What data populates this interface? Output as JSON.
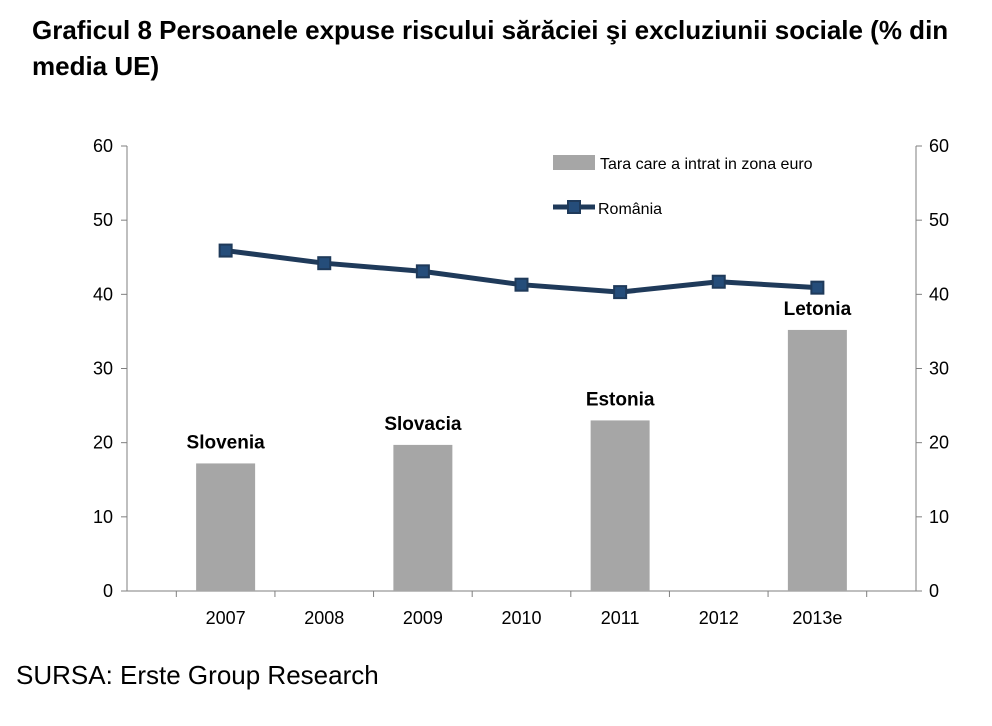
{
  "title": "Graficul 8 Persoanele expuse riscului sărăciei şi excluziunii sociale (% din media UE)",
  "source": "SURSA: Erste Group Research",
  "chart_data": {
    "type": "bar",
    "categories": [
      "2007",
      "2008",
      "2009",
      "2010",
      "2011",
      "2012",
      "2013e"
    ],
    "series": [
      {
        "name": "Tara care a intrat in zona euro",
        "type": "bar",
        "color": "#a6a6a6",
        "values": [
          17.2,
          null,
          19.7,
          null,
          23.0,
          null,
          35.2
        ],
        "labels": [
          "Slovenia",
          null,
          "Slovacia",
          null,
          "Estonia",
          null,
          "Letonia"
        ]
      },
      {
        "name": "România",
        "type": "line",
        "color": "#1f3a5a",
        "marker_color": "#1f3a5a",
        "values": [
          45.9,
          44.2,
          43.1,
          41.3,
          40.3,
          41.7,
          40.9
        ]
      }
    ],
    "ylim": [
      0,
      60
    ],
    "yticks": [
      0,
      10,
      20,
      30,
      40,
      50,
      60
    ],
    "y2lim": [
      0,
      60
    ],
    "y2ticks": [
      0,
      10,
      20,
      30,
      40,
      50,
      60
    ],
    "legend_position": "top-right",
    "grid": false
  }
}
